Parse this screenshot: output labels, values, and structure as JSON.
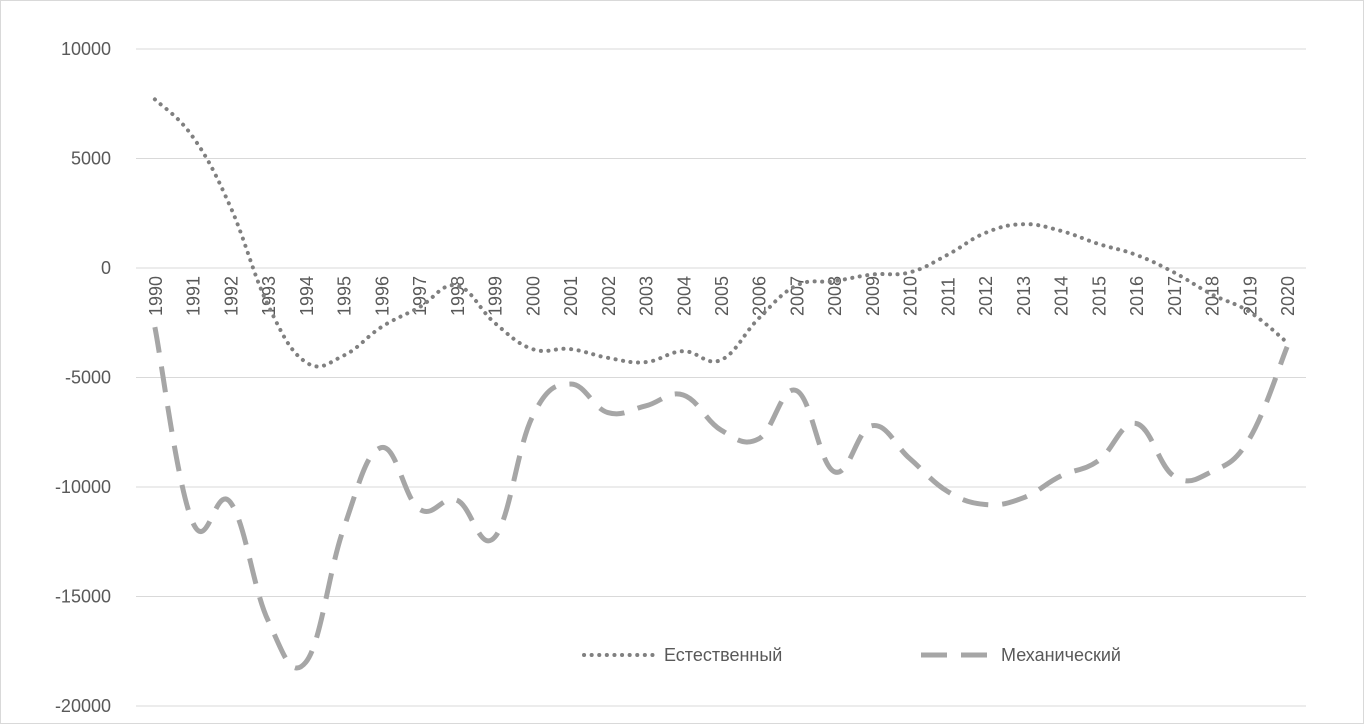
{
  "chart_data": {
    "type": "line",
    "categories": [
      "1990",
      "1991",
      "1992",
      "1993",
      "1994",
      "1995",
      "1996",
      "1997",
      "1998",
      "1999",
      "2000",
      "2001",
      "2002",
      "2003",
      "2004",
      "2005",
      "2006",
      "2007",
      "2008",
      "2009",
      "2010",
      "2011",
      "2012",
      "2013",
      "2014",
      "2015",
      "2016",
      "2017",
      "2018",
      "2019",
      "2020"
    ],
    "series": [
      {
        "name": "Естественный",
        "style": "dotted",
        "color": "#808080",
        "values": [
          7700,
          6000,
          2800,
          -1700,
          -4300,
          -4000,
          -2700,
          -1800,
          -800,
          -2500,
          -3700,
          -3700,
          -4100,
          -4300,
          -3800,
          -4200,
          -2300,
          -800,
          -600,
          -300,
          -200,
          600,
          1600,
          2000,
          1700,
          1100,
          600,
          -200,
          -1200,
          -2000,
          -3400
        ]
      },
      {
        "name": "Механический",
        "style": "dashed",
        "color": "#a6a6a6",
        "values": [
          -2700,
          -11600,
          -10700,
          -16100,
          -18000,
          -11900,
          -8200,
          -11000,
          -10600,
          -12300,
          -6800,
          -5300,
          -6600,
          -6300,
          -5800,
          -7400,
          -7800,
          -5600,
          -9300,
          -7200,
          -8700,
          -10200,
          -10800,
          -10500,
          -9500,
          -8800,
          -7100,
          -9500,
          -9300,
          -7800,
          -3600
        ]
      }
    ],
    "y_ticks": [
      "10000",
      "5000",
      "0",
      "-5000",
      "-10000",
      "-15000",
      "-20000"
    ],
    "ylim": [
      -20000,
      10000
    ],
    "grid": true,
    "legend_position": "bottom-right"
  }
}
